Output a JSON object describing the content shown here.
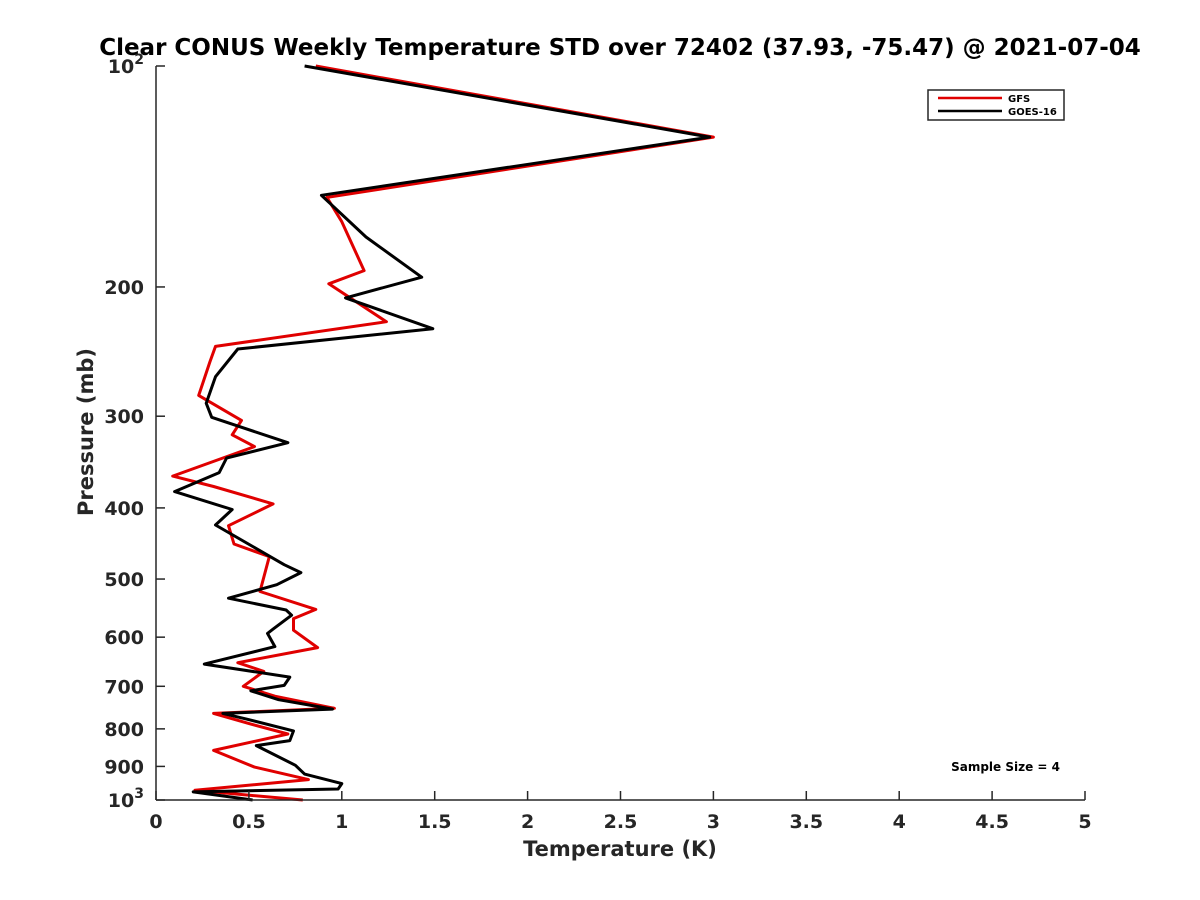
{
  "chart_data": {
    "type": "line",
    "title": "Clear CONUS Weekly Temperature STD over 72402 (37.93, -75.47) @ 2021-07-04",
    "xlabel": "Temperature (K)",
    "ylabel": "Pressure (mb)",
    "xlim": [
      0,
      5
    ],
    "ylim": [
      100,
      1000
    ],
    "y_scale": "log",
    "y_reversed": true,
    "grid": false,
    "legend_position": "top-right",
    "x_ticks": [
      "0",
      "0.5",
      "1",
      "1.5",
      "2",
      "2.5",
      "3",
      "3.5",
      "4",
      "4.5",
      "5"
    ],
    "x_tick_values": [
      0,
      0.5,
      1,
      1.5,
      2,
      2.5,
      3,
      3.5,
      4,
      4.5,
      5
    ],
    "y_ticks": [
      {
        "value": 100,
        "base": "10",
        "exp": "2"
      },
      {
        "value": 200,
        "label": "200"
      },
      {
        "value": 300,
        "label": "300"
      },
      {
        "value": 400,
        "label": "400"
      },
      {
        "value": 500,
        "label": "500"
      },
      {
        "value": 600,
        "label": "600"
      },
      {
        "value": 700,
        "label": "700"
      },
      {
        "value": 800,
        "label": "800"
      },
      {
        "value": 900,
        "label": "900"
      },
      {
        "value": 1000,
        "base": "10",
        "exp": "3"
      }
    ],
    "annotation": "Sample Size = 4",
    "series": [
      {
        "name": "GFS",
        "color": "#e00000",
        "points": [
          [
            0.86,
            100
          ],
          [
            3.0,
            125
          ],
          [
            0.92,
            151
          ],
          [
            1.0,
            163
          ],
          [
            1.12,
            190
          ],
          [
            0.93,
            198
          ],
          [
            1.24,
            223
          ],
          [
            0.32,
            241
          ],
          [
            0.29,
            253
          ],
          [
            0.23,
            281
          ],
          [
            0.46,
            304
          ],
          [
            0.41,
            318
          ],
          [
            0.53,
            330
          ],
          [
            0.09,
            362
          ],
          [
            0.31,
            374
          ],
          [
            0.63,
            395
          ],
          [
            0.39,
            423
          ],
          [
            0.42,
            448
          ],
          [
            0.61,
            466
          ],
          [
            0.56,
            520
          ],
          [
            0.86,
            550
          ],
          [
            0.74,
            566
          ],
          [
            0.74,
            587
          ],
          [
            0.87,
            620
          ],
          [
            0.44,
            650
          ],
          [
            0.58,
            668
          ],
          [
            0.47,
            700
          ],
          [
            0.64,
            722
          ],
          [
            0.96,
            750
          ],
          [
            0.31,
            762
          ],
          [
            0.51,
            788
          ],
          [
            0.71,
            813
          ],
          [
            0.31,
            856
          ],
          [
            0.53,
            902
          ],
          [
            0.82,
            938
          ],
          [
            0.21,
            970
          ],
          [
            0.79,
            1000
          ]
        ]
      },
      {
        "name": "GOES-16",
        "color": "#000000",
        "points": [
          [
            0.8,
            100
          ],
          [
            2.98,
            125
          ],
          [
            0.89,
            150
          ],
          [
            1.13,
            171
          ],
          [
            1.43,
            194
          ],
          [
            1.02,
            207
          ],
          [
            1.49,
            228
          ],
          [
            0.44,
            243
          ],
          [
            0.32,
            265
          ],
          [
            0.27,
            288
          ],
          [
            0.3,
            301
          ],
          [
            0.71,
            326
          ],
          [
            0.38,
            342
          ],
          [
            0.34,
            358
          ],
          [
            0.1,
            380
          ],
          [
            0.41,
            402
          ],
          [
            0.32,
            422
          ],
          [
            0.69,
            478
          ],
          [
            0.78,
            490
          ],
          [
            0.65,
            509
          ],
          [
            0.39,
            531
          ],
          [
            0.7,
            551
          ],
          [
            0.73,
            560
          ],
          [
            0.63,
            585
          ],
          [
            0.6,
            593
          ],
          [
            0.64,
            618
          ],
          [
            0.26,
            653
          ],
          [
            0.72,
            680
          ],
          [
            0.69,
            698
          ],
          [
            0.51,
            710
          ],
          [
            0.66,
            730
          ],
          [
            0.95,
            752
          ],
          [
            0.36,
            762
          ],
          [
            0.49,
            776
          ],
          [
            0.74,
            805
          ],
          [
            0.72,
            830
          ],
          [
            0.54,
            843
          ],
          [
            0.75,
            897
          ],
          [
            0.8,
            922
          ],
          [
            1.0,
            950
          ],
          [
            0.98,
            966
          ],
          [
            0.2,
            975
          ],
          [
            0.52,
            1000
          ]
        ]
      }
    ]
  }
}
